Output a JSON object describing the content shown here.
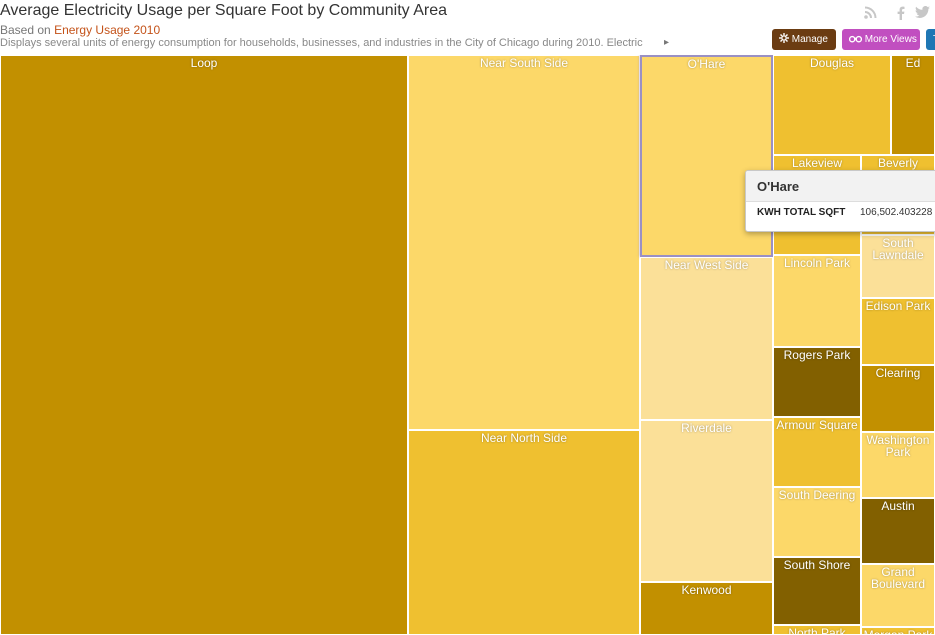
{
  "header": {
    "title": "Average Electricity Usage per Square Foot by Community Area",
    "based_prefix": "Based on",
    "based_link": "Energy Usage 2010",
    "description": "Displays several units of energy consumption for households, businesses, and industries in the City of Chicago during 2010. Electric",
    "more_icon": "▸",
    "icons": {
      "rss": "rss-icon",
      "facebook": "facebook-icon",
      "twitter": "twitter-icon"
    },
    "buttons": {
      "manage": "Manage",
      "more_views": "More Views",
      "blue": "T"
    }
  },
  "colors": {
    "very_light": "#fbe098",
    "light": "#fcd869",
    "mid": "#efc030",
    "dark": "#c29000",
    "darkest": "#826000",
    "manage_button": "#6b3c12",
    "more_views_button": "#c14fc0",
    "link": "#c4531a"
  },
  "treemap": {
    "tiles": [
      {
        "label": "Loop",
        "shade": "dark"
      },
      {
        "label": "Near South Side",
        "shade": "light"
      },
      {
        "label": "Near North Side",
        "shade": "mid"
      },
      {
        "label": "O'Hare",
        "shade": "light",
        "selected": true
      },
      {
        "label": "Near West Side",
        "shade": "very_light"
      },
      {
        "label": "Riverdale",
        "shade": "very_light"
      },
      {
        "label": "Kenwood",
        "shade": "dark"
      },
      {
        "label": "Douglas",
        "shade": "mid"
      },
      {
        "label": "Edgewater",
        "display": "Ed",
        "shade": "dark"
      },
      {
        "label": "Lakeview",
        "shade": "mid"
      },
      {
        "label": "Beverly",
        "shade": "mid"
      },
      {
        "label": "South Lawndale",
        "display": "South\nLawndale",
        "shade": "very_light"
      },
      {
        "label": "Lincoln Park",
        "shade": "light"
      },
      {
        "label": "Edison Park",
        "shade": "mid"
      },
      {
        "label": "Rogers Park",
        "shade": "darkest"
      },
      {
        "label": "Clearing",
        "shade": "dark"
      },
      {
        "label": "Armour Square",
        "shade": "mid"
      },
      {
        "label": "Washington Park",
        "display": "Washington\nPark",
        "shade": "light"
      },
      {
        "label": "South Deering",
        "shade": "light"
      },
      {
        "label": "Austin",
        "shade": "darkest"
      },
      {
        "label": "South Shore",
        "shade": "darkest"
      },
      {
        "label": "Grand Boulevard",
        "display": "Grand\nBoulevard",
        "shade": "light"
      },
      {
        "label": "North Park",
        "shade": "mid"
      },
      {
        "label": "Morgan Park",
        "shade": "mid"
      }
    ]
  },
  "tooltip": {
    "title": "O'Hare",
    "key": "KWH TOTAL SQFT",
    "value": "106,502.403228"
  }
}
